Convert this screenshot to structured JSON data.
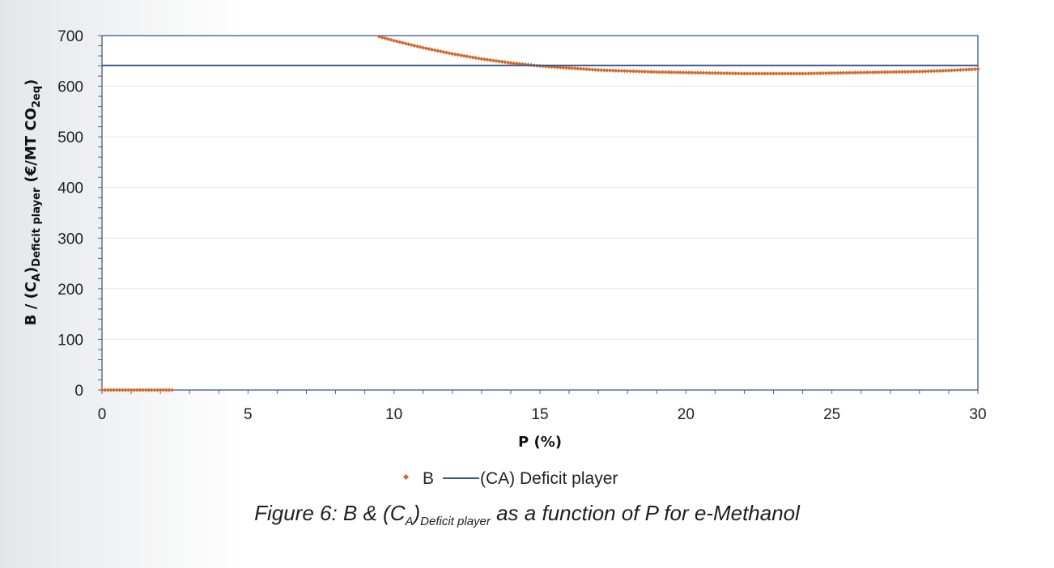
{
  "chart_data": {
    "type": "scatter",
    "x_ticks": [
      0,
      5,
      10,
      15,
      20,
      25,
      30
    ],
    "y_ticks": [
      0,
      100,
      200,
      300,
      400,
      500,
      600,
      700
    ],
    "xlim": [
      0,
      30
    ],
    "ylim": [
      0,
      700
    ],
    "grid": "horizontal",
    "legend_position": "bottom",
    "xlabel": "P (%)",
    "ylabel": {
      "prefix": "B / (C",
      "sub_a": "A",
      "mid": ")",
      "sub_player": "Deficit player",
      "unit": " (€/MT CO",
      "sub_2eq": "2eq",
      "end": ")"
    },
    "series": [
      {
        "name": "B",
        "kind": "points",
        "color": "#d36a2a",
        "segments": [
          {
            "x_start": 0.0,
            "x_end": 2.4,
            "points": [
              [
                0.0,
                0
              ],
              [
                2.4,
                0
              ]
            ]
          },
          {
            "x_start": 9.5,
            "x_end": 30.0,
            "points": [
              [
                9.5,
                698
              ],
              [
                10.0,
                690
              ],
              [
                11.0,
                676
              ],
              [
                12.0,
                664
              ],
              [
                13.0,
                654
              ],
              [
                14.0,
                646
              ],
              [
                15.0,
                640
              ],
              [
                16.0,
                636
              ],
              [
                17.0,
                632
              ],
              [
                18.0,
                630
              ],
              [
                19.0,
                628
              ],
              [
                20.0,
                627
              ],
              [
                21.0,
                626
              ],
              [
                22.0,
                625
              ],
              [
                23.0,
                625
              ],
              [
                24.0,
                625
              ],
              [
                25.0,
                626
              ],
              [
                26.0,
                627
              ],
              [
                27.0,
                628
              ],
              [
                28.0,
                629
              ],
              [
                29.0,
                631
              ],
              [
                30.0,
                634
              ]
            ]
          }
        ]
      },
      {
        "name": "(CA) Deficit player",
        "kind": "line",
        "color": "#3a5a97",
        "value": 641
      }
    ]
  },
  "caption": {
    "prefix": "Figure 6: B & (C",
    "sub_a": "A",
    "close": ")",
    "sub_player": "Deficit player",
    "suffix": " as a function of P for e-Methanol"
  }
}
